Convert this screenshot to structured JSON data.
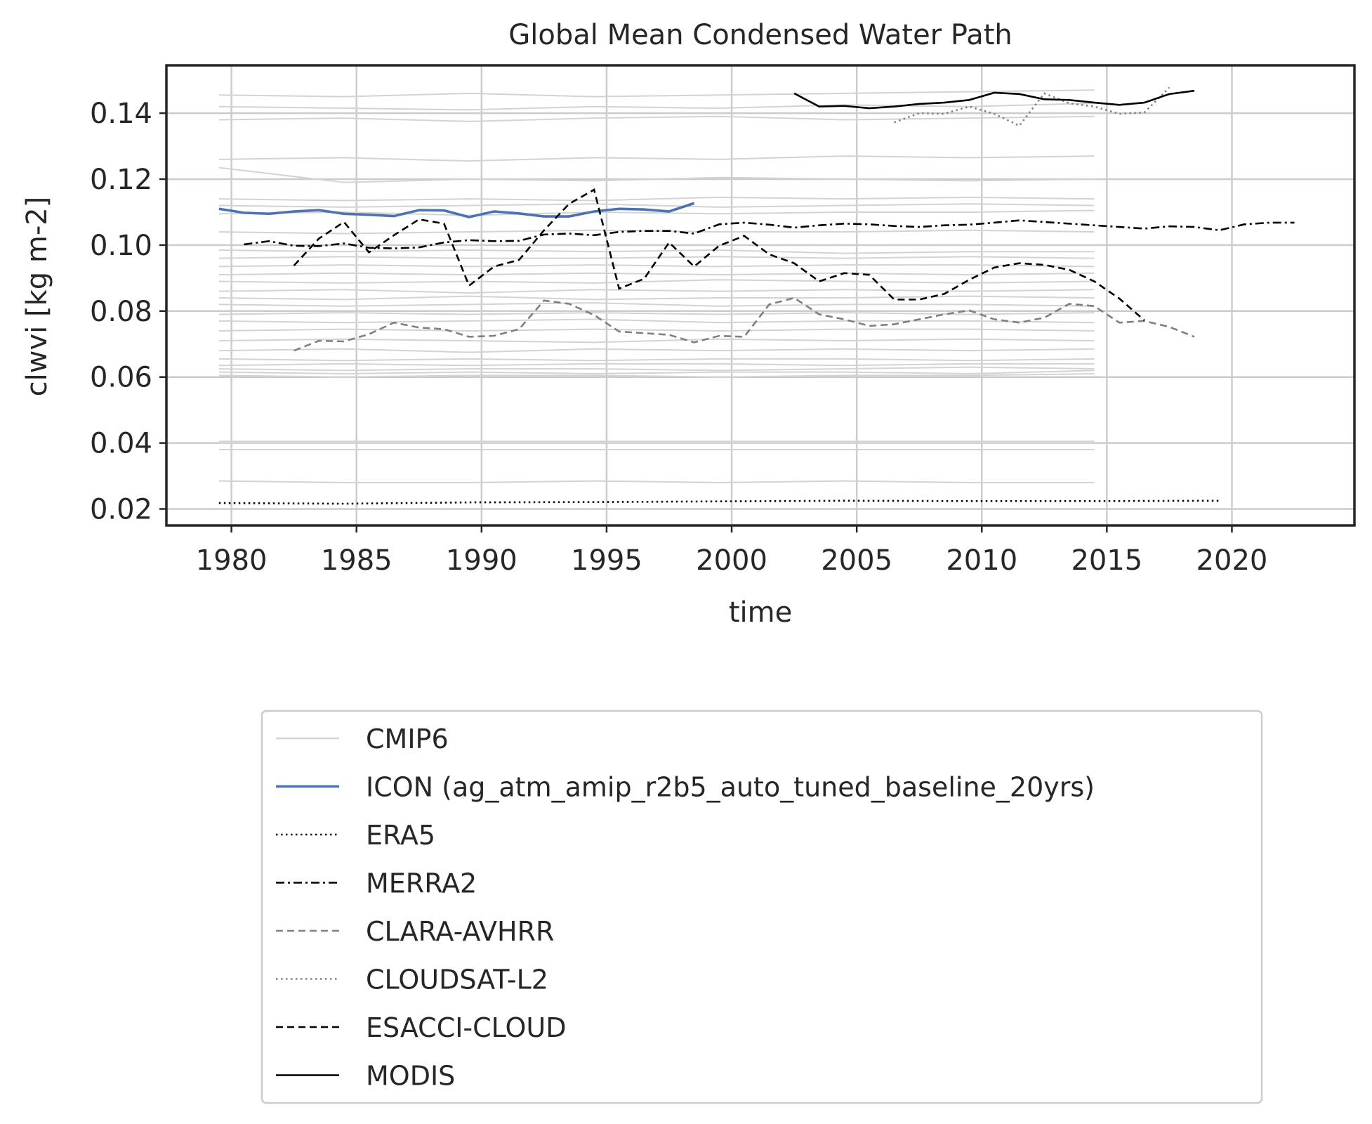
{
  "chart_data": {
    "type": "line",
    "title": "Global Mean Condensed Water Path",
    "xlabel": "time",
    "ylabel": "clwvi [kg m-2]",
    "xlim": [
      1977.4,
      2024.9
    ],
    "ylim": [
      0.015,
      0.1545
    ],
    "xticks": [
      1980,
      1985,
      1990,
      1995,
      2000,
      2005,
      2010,
      2015,
      2020
    ],
    "yticks": [
      0.02,
      0.04,
      0.06,
      0.08,
      0.1,
      0.12,
      0.14
    ],
    "ytick_labels": [
      "0.02",
      "0.04",
      "0.06",
      "0.08",
      "0.10",
      "0.12",
      "0.14"
    ],
    "grid": true,
    "legend_position": "below plot",
    "cmip6_years": [
      1979.5,
      1984.5,
      1989.5,
      1994.5,
      1999.5,
      2004.5,
      2009.5,
      2014.5
    ],
    "cmip6_members": [
      [
        0.1455,
        0.145,
        0.146,
        0.145,
        0.1455,
        0.146,
        0.1465,
        0.147
      ],
      [
        0.142,
        0.1415,
        0.141,
        0.142,
        0.1415,
        0.1425,
        0.142,
        0.143
      ],
      [
        0.138,
        0.1385,
        0.1375,
        0.1385,
        0.139,
        0.138,
        0.1385,
        0.139
      ],
      [
        0.126,
        0.1265,
        0.1255,
        0.1265,
        0.126,
        0.127,
        0.1265,
        0.127
      ],
      [
        0.1235,
        0.119,
        0.12,
        0.1195,
        0.1205,
        0.12,
        0.1195,
        0.12
      ],
      [
        0.114,
        0.1135,
        0.114,
        0.1135,
        0.1145,
        0.114,
        0.1145,
        0.114
      ],
      [
        0.112,
        0.1115,
        0.112,
        0.1125,
        0.1115,
        0.112,
        0.1125,
        0.112
      ],
      [
        0.1095,
        0.11,
        0.109,
        0.11,
        0.1095,
        0.11,
        0.11,
        0.1105
      ],
      [
        0.104,
        0.1035,
        0.104,
        0.1045,
        0.104,
        0.104,
        0.1045,
        0.104
      ],
      [
        0.0985,
        0.098,
        0.0985,
        0.098,
        0.0985,
        0.0975,
        0.098,
        0.098
      ],
      [
        0.096,
        0.0965,
        0.096,
        0.096,
        0.0965,
        0.096,
        0.0965,
        0.096
      ],
      [
        0.0935,
        0.094,
        0.0935,
        0.094,
        0.0935,
        0.094,
        0.094,
        0.0935
      ],
      [
        0.091,
        0.0915,
        0.091,
        0.0915,
        0.091,
        0.0915,
        0.091,
        0.0915
      ],
      [
        0.089,
        0.0885,
        0.089,
        0.0885,
        0.0895,
        0.089,
        0.0885,
        0.089
      ],
      [
        0.086,
        0.0865,
        0.0855,
        0.0865,
        0.086,
        0.0865,
        0.086,
        0.0865
      ],
      [
        0.084,
        0.0835,
        0.0845,
        0.0835,
        0.084,
        0.084,
        0.0845,
        0.084
      ],
      [
        0.082,
        0.0815,
        0.082,
        0.0825,
        0.0815,
        0.082,
        0.082,
        0.0815
      ],
      [
        0.079,
        0.0795,
        0.079,
        0.0795,
        0.079,
        0.0795,
        0.079,
        0.0795
      ],
      [
        0.077,
        0.0765,
        0.077,
        0.0775,
        0.0765,
        0.077,
        0.077,
        0.0765
      ],
      [
        0.074,
        0.0745,
        0.074,
        0.0745,
        0.074,
        0.0745,
        0.0745,
        0.074
      ],
      [
        0.071,
        0.0715,
        0.071,
        0.0705,
        0.0715,
        0.071,
        0.0715,
        0.071
      ],
      [
        0.068,
        0.0685,
        0.0675,
        0.0685,
        0.068,
        0.0685,
        0.068,
        0.0685
      ],
      [
        0.0655,
        0.065,
        0.0655,
        0.065,
        0.0655,
        0.0655,
        0.065,
        0.0655
      ],
      [
        0.0635,
        0.064,
        0.0635,
        0.064,
        0.064,
        0.0635,
        0.064,
        0.064
      ],
      [
        0.0625,
        0.062,
        0.0625,
        0.0625,
        0.062,
        0.0625,
        0.063,
        0.0625
      ],
      [
        0.0615,
        0.061,
        0.0615,
        0.061,
        0.0615,
        0.0615,
        0.061,
        0.062
      ],
      [
        0.0605,
        0.06,
        0.0605,
        0.0605,
        0.06,
        0.0605,
        0.0605,
        0.061
      ],
      [
        0.0405,
        0.0405,
        0.0405,
        0.0405,
        0.0405,
        0.0405,
        0.0405,
        0.0405
      ],
      [
        0.04,
        0.04,
        0.04,
        0.04,
        0.04,
        0.04,
        0.04,
        0.04
      ],
      [
        0.038,
        0.038,
        0.038,
        0.038,
        0.038,
        0.038,
        0.038,
        0.038
      ],
      [
        0.0285,
        0.028,
        0.028,
        0.0285,
        0.028,
        0.0285,
        0.028,
        0.028
      ]
    ],
    "series": [
      {
        "name": "CMIP6",
        "color": "#d3d3d3",
        "dash": "solid"
      },
      {
        "name": "ICON (ag_atm_amip_r2b5_auto_tuned_baseline_20yrs)",
        "color": "#4c72b0",
        "dash": "solid",
        "x": [
          1979.5,
          1980.5,
          1981.5,
          1982.5,
          1983.5,
          1984.5,
          1985.5,
          1986.5,
          1987.5,
          1988.5,
          1989.5,
          1990.5,
          1991.5,
          1992.5,
          1993.5,
          1994.5,
          1995.5,
          1996.5,
          1997.5,
          1998.5
        ],
        "y": [
          0.111,
          0.1098,
          0.1095,
          0.1102,
          0.1106,
          0.1095,
          0.1092,
          0.1088,
          0.1106,
          0.1105,
          0.1085,
          0.1102,
          0.1096,
          0.1087,
          0.1087,
          0.1102,
          0.111,
          0.1108,
          0.1102,
          0.1127
        ]
      },
      {
        "name": "ERA5",
        "color": "#000000",
        "dash": "dotted",
        "x": [
          1979.5,
          1984.5,
          1989.5,
          1994.5,
          1999.5,
          2004.5,
          2009.5,
          2014.5,
          2019.5
        ],
        "y": [
          0.0218,
          0.0216,
          0.022,
          0.0221,
          0.0223,
          0.0225,
          0.0224,
          0.0224,
          0.0225
        ]
      },
      {
        "name": "MERRA2",
        "color": "#000000",
        "dash": "dashdot",
        "x": [
          1980.5,
          1981.5,
          1982.5,
          1983.5,
          1984.5,
          1985.5,
          1986.5,
          1987.5,
          1988.5,
          1989.5,
          1990.5,
          1991.5,
          1992.5,
          1993.5,
          1994.5,
          1995.5,
          1996.5,
          1997.5,
          1998.5,
          1999.5,
          2000.5,
          2001.5,
          2002.5,
          2003.5,
          2004.5,
          2005.5,
          2006.5,
          2007.5,
          2008.5,
          2009.5,
          2010.5,
          2011.5,
          2012.5,
          2013.5,
          2014.5,
          2015.5,
          2016.5,
          2017.5,
          2018.5,
          2019.5,
          2020.5,
          2021.5,
          2022.5
        ],
        "y": [
          0.1002,
          0.1012,
          0.0998,
          0.0997,
          0.1005,
          0.0992,
          0.099,
          0.0993,
          0.1008,
          0.1015,
          0.1012,
          0.1013,
          0.1032,
          0.1035,
          0.103,
          0.104,
          0.1043,
          0.1043,
          0.1035,
          0.1063,
          0.1068,
          0.1062,
          0.1053,
          0.106,
          0.1065,
          0.1063,
          0.1058,
          0.1055,
          0.106,
          0.1062,
          0.1068,
          0.1075,
          0.107,
          0.1065,
          0.106,
          0.1055,
          0.105,
          0.1057,
          0.1055,
          0.1045,
          0.1063,
          0.1068,
          0.1068
        ]
      },
      {
        "name": "CLARA-AVHRR",
        "color": "#808080",
        "dash": "dashed",
        "x": [
          1982.5,
          1983.5,
          1984.5,
          1985.5,
          1986.5,
          1987.5,
          1988.5,
          1989.5,
          1990.5,
          1991.5,
          1992.5,
          1993.5,
          1994.5,
          1995.5,
          1996.5,
          1997.5,
          1998.5,
          1999.5,
          2000.5,
          2001.5,
          2002.5,
          2003.5,
          2004.5,
          2005.5,
          2006.5,
          2007.5,
          2008.5,
          2009.5,
          2010.5,
          2011.5,
          2012.5,
          2013.5,
          2014.5,
          2015.5,
          2016.5,
          2017.5,
          2018.5
        ],
        "y": [
          0.068,
          0.071,
          0.0708,
          0.073,
          0.0765,
          0.075,
          0.0745,
          0.0722,
          0.0725,
          0.0745,
          0.0832,
          0.0822,
          0.0788,
          0.0738,
          0.0733,
          0.0728,
          0.0705,
          0.0725,
          0.0722,
          0.082,
          0.084,
          0.079,
          0.0775,
          0.0755,
          0.076,
          0.0775,
          0.079,
          0.0802,
          0.0775,
          0.0765,
          0.078,
          0.0822,
          0.0815,
          0.0765,
          0.077,
          0.0752,
          0.0722
        ]
      },
      {
        "name": "CLOUDSAT-L2",
        "color": "#808080",
        "dash": "dotted",
        "x": [
          2006.5,
          2007.5,
          2008.5,
          2009.5,
          2010.5,
          2011.5,
          2012.5,
          2013.5,
          2014.5,
          2015.5,
          2016.5,
          2017.5
        ],
        "y": [
          0.1372,
          0.14,
          0.1398,
          0.142,
          0.1398,
          0.1362,
          0.146,
          0.143,
          0.142,
          0.1398,
          0.1402,
          0.1478
        ]
      },
      {
        "name": "ESACCI-CLOUD",
        "color": "#000000",
        "dash": "dashed",
        "x": [
          1982.5,
          1983.5,
          1984.5,
          1985.5,
          1986.5,
          1987.5,
          1988.5,
          1989.5,
          1990.5,
          1991.5,
          1992.5,
          1993.5,
          1994.5,
          1995.5,
          1996.5,
          1997.5,
          1998.5,
          1999.5,
          2000.5,
          2001.5,
          2002.5,
          2003.5,
          2004.5,
          2005.5,
          2006.5,
          2007.5,
          2008.5,
          2009.5,
          2010.5,
          2011.5,
          2012.5,
          2013.5,
          2014.5,
          2015.5,
          2016.5
        ],
        "y": [
          0.0938,
          0.102,
          0.107,
          0.0978,
          0.103,
          0.1078,
          0.1065,
          0.0877,
          0.0935,
          0.0955,
          0.1045,
          0.1125,
          0.1168,
          0.0868,
          0.0898,
          0.1008,
          0.0935,
          0.0998,
          0.1028,
          0.0972,
          0.0945,
          0.089,
          0.0915,
          0.091,
          0.0835,
          0.0835,
          0.0852,
          0.0895,
          0.0932,
          0.0945,
          0.094,
          0.0925,
          0.089,
          0.0838,
          0.0772
        ]
      },
      {
        "name": "MODIS",
        "color": "#000000",
        "dash": "solid",
        "x": [
          2002.5,
          2003.5,
          2004.5,
          2005.5,
          2006.5,
          2007.5,
          2008.5,
          2009.5,
          2010.5,
          2011.5,
          2012.5,
          2013.5,
          2014.5,
          2015.5,
          2016.5,
          2017.5,
          2018.5
        ],
        "y": [
          0.146,
          0.142,
          0.1422,
          0.1415,
          0.142,
          0.1428,
          0.1432,
          0.144,
          0.1462,
          0.1458,
          0.1442,
          0.144,
          0.1432,
          0.1425,
          0.1432,
          0.1458,
          0.1468
        ]
      }
    ]
  }
}
